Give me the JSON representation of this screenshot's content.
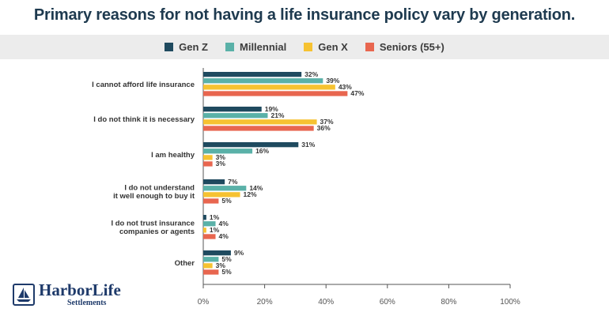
{
  "colors": {
    "title": "#1e3a4f",
    "axis": "#555555",
    "label": "#333333",
    "legend_band": "#ececec",
    "logo": "#1e3a6a"
  },
  "logo": {
    "name": "HarborLife",
    "sub": "Settlements",
    "icon": "sailboat-icon"
  },
  "chart_data": {
    "type": "bar",
    "orientation": "horizontal",
    "title": "Primary reasons for not having a life insurance policy vary by generation.",
    "categories": [
      "I cannot afford life insurance",
      "I do not think it is necessary",
      "I am healthy",
      "I do not understand\nit well enough to buy it",
      "I do not trust insurance\ncompanies or agents",
      "Other"
    ],
    "series": [
      {
        "name": "Gen Z",
        "color": "#1f4a5f",
        "values": [
          32,
          19,
          31,
          7,
          1,
          9
        ]
      },
      {
        "name": "Millennial",
        "color": "#5ab1a8",
        "values": [
          39,
          21,
          16,
          14,
          4,
          5
        ]
      },
      {
        "name": "Gen X",
        "color": "#f6c231",
        "values": [
          43,
          37,
          3,
          12,
          1,
          3
        ]
      },
      {
        "name": "Seniors (55+)",
        "color": "#e8664f",
        "values": [
          47,
          36,
          3,
          5,
          4,
          5
        ]
      }
    ],
    "value_suffix": "%",
    "xlim": [
      0,
      100
    ],
    "xticks": [
      "0%",
      "20%",
      "40%",
      "60%",
      "80%",
      "100%"
    ],
    "xtick_values": [
      0,
      20,
      40,
      60,
      80,
      100
    ],
    "legend_position": "top",
    "grid": false
  }
}
